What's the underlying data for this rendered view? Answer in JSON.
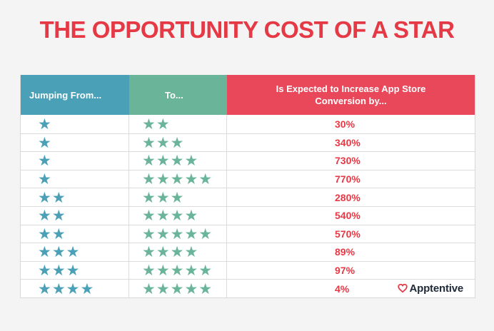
{
  "title": "THE OPPORTUNITY COST OF A STAR",
  "table": {
    "headers": {
      "from": "Jumping From...",
      "to": "To...",
      "increase": "Is Expected to Increase App Store Conversion by..."
    },
    "rows": [
      {
        "from": "★",
        "to": "★★",
        "increase": "30%"
      },
      {
        "from": "★",
        "to": "★★★",
        "increase": "340%"
      },
      {
        "from": "★",
        "to": "★★★★",
        "increase": "730%"
      },
      {
        "from": "★",
        "to": "★★★★★",
        "increase": "770%"
      },
      {
        "from": "★★",
        "to": "★★★",
        "increase": "280%"
      },
      {
        "from": "★★",
        "to": "★★★★",
        "increase": "540%"
      },
      {
        "from": "★★",
        "to": "★★★★★",
        "increase": "570%"
      },
      {
        "from": "★★★",
        "to": "★★★★",
        "increase": "89%"
      },
      {
        "from": "★★★",
        "to": "★★★★★",
        "increase": "97%"
      },
      {
        "from": "★★★★",
        "to": "★★★★★",
        "increase": "4%"
      }
    ]
  },
  "brand": {
    "name": "Apptentive",
    "icon": "heart-outline-icon"
  },
  "colors": {
    "title": "#e53945",
    "from_header": "#4aa1b7",
    "to_header": "#6ab59a",
    "increase_header": "#e8485a"
  }
}
